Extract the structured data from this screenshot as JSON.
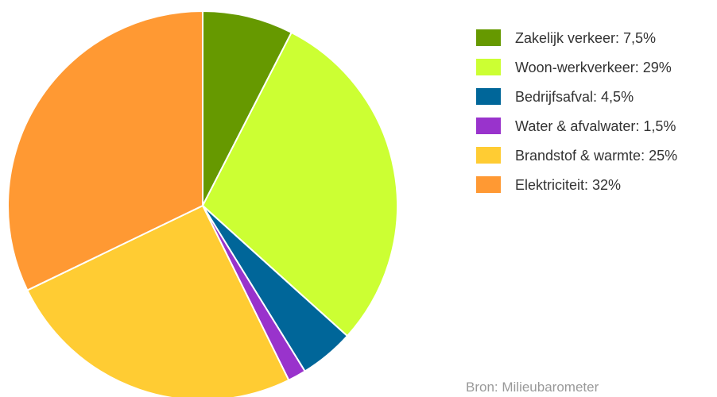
{
  "chart_data": {
    "type": "pie",
    "slices": [
      {
        "label": "Zakelijk verkeer: 7,5%",
        "value": 7.5,
        "color": "#669900"
      },
      {
        "label": "Woon-werkverkeer: 29%",
        "value": 29,
        "color": "#CCFF33"
      },
      {
        "label": "Bedrijfsafval: 4,5%",
        "value": 4.5,
        "color": "#006699"
      },
      {
        "label": "Water & afvalwater: 1,5%",
        "value": 1.5,
        "color": "#9933CC"
      },
      {
        "label": "Brandstof & warmte: 25%",
        "value": 25,
        "color": "#FFCC33"
      },
      {
        "label": "Elektriciteit: 32%",
        "value": 32,
        "color": "#FF9933"
      }
    ],
    "start_angle_deg": 0,
    "direction": "clockwise",
    "legend_position": "top-right",
    "source": "Bron: Milieubarometer"
  }
}
